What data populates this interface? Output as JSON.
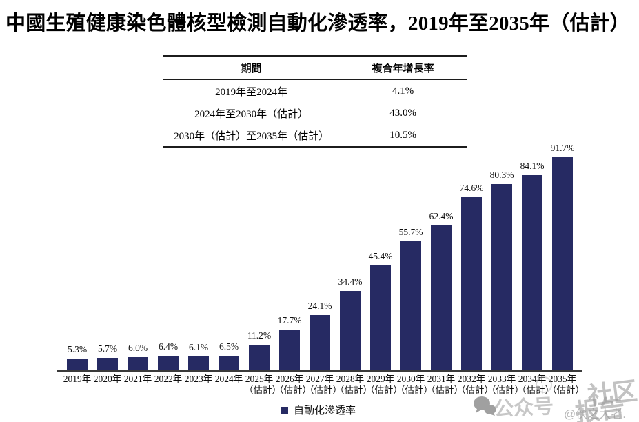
{
  "title": "中國生殖健康染色體核型檢測自動化滲透率，2019年至2035年（估計）",
  "table": {
    "headers": [
      "期間",
      "複合年增長率"
    ],
    "rows": [
      {
        "period": "2019年至2024年",
        "cagr": "4.1%"
      },
      {
        "period": "2024年至2030年（估計）",
        "cagr": "43.0%"
      },
      {
        "period": "2030年（估計）至2035年（估計）",
        "cagr": "10.5%"
      }
    ]
  },
  "chart_data": {
    "type": "bar",
    "title": "中國生殖健康染色體核型檢測自動化滲透率，2019年至2035年（估計）",
    "categories": [
      "2019年",
      "2020年",
      "2021年",
      "2022年",
      "2023年",
      "2024年",
      "2025年（估計）",
      "2026年（估計）",
      "2027年（估計）",
      "2028年（估計）",
      "2029年（估計）",
      "2030年（估計）",
      "2031年（估計）",
      "2032年（估計）",
      "2033年（估計）",
      "2034年（估計）",
      "2035年（估計）"
    ],
    "values": [
      5.3,
      5.7,
      6.0,
      6.4,
      6.1,
      6.5,
      11.2,
      17.7,
      24.1,
      34.4,
      45.4,
      55.7,
      62.4,
      74.6,
      80.3,
      84.1,
      91.7
    ],
    "value_labels": [
      "5.3%",
      "5.7%",
      "6.0%",
      "6.4%",
      "6.1%",
      "6.5%",
      "11.2%",
      "17.7%",
      "24.1%",
      "34.4%",
      "45.4%",
      "55.7%",
      "62.4%",
      "74.6%",
      "80.3%",
      "84.1%",
      "91.7%"
    ],
    "legend": [
      "自動化滲透率"
    ],
    "bar_color": "#262a63",
    "ylabel": "",
    "xlabel": "",
    "ylim": [
      0,
      100
    ],
    "grid": false,
    "legend_position": "bottom"
  },
  "legend": {
    "label": "自動化滲透率"
  },
  "watermark": {
    "wechat_label": "公众号",
    "big_text_1": "社区",
    "big_text_2": "报告",
    "handle": "@侠之大者."
  }
}
